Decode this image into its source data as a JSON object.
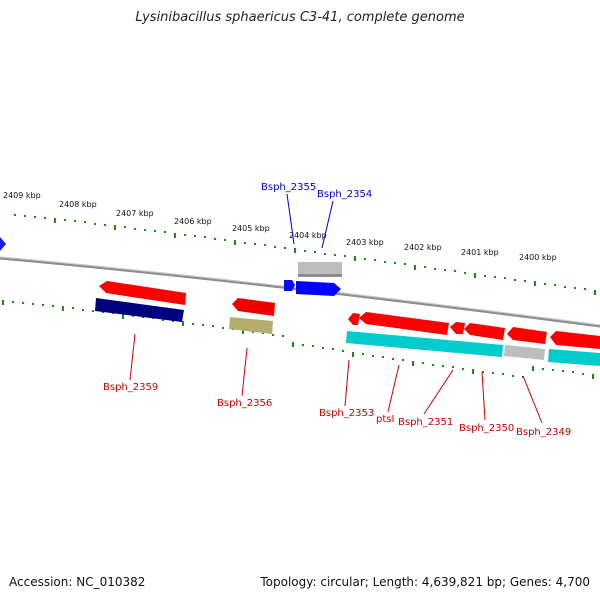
{
  "title": "Lysinibacillus sphaericus C3-41, complete genome",
  "footer": {
    "accession": "Accession: NC_010382",
    "summary": "Topology: circular; Length: 4,639,821 bp; Genes: 4,700"
  },
  "scale_labels": [
    "2409 kbp",
    "2408 kbp",
    "2407 kbp",
    "2406 kbp",
    "2405 kbp",
    "2404 kbp",
    "2403 kbp",
    "2402 kbp",
    "2401 kbp",
    "2400 kbp"
  ],
  "gene_labels_top": [
    "Bsph_2355",
    "Bsph_2354"
  ],
  "gene_labels_bottom": [
    "Bsph_2359",
    "Bsph_2356",
    "Bsph_2353",
    "ptsI",
    "Bsph_2351",
    "Bsph_2350",
    "Bsph_2349"
  ],
  "colors": {
    "forward_label": "#0000cc",
    "reverse_label": "#cc0000",
    "tick": "#1a8a1a",
    "backbone": "#888888",
    "cds_forward": "#0000ff",
    "cds_reverse": "#ff0000",
    "gene_cyan": "#00cccc",
    "gene_navy": "#000080",
    "gene_olive": "#b3ad6e",
    "gene_grey": "#bdbdbd"
  }
}
